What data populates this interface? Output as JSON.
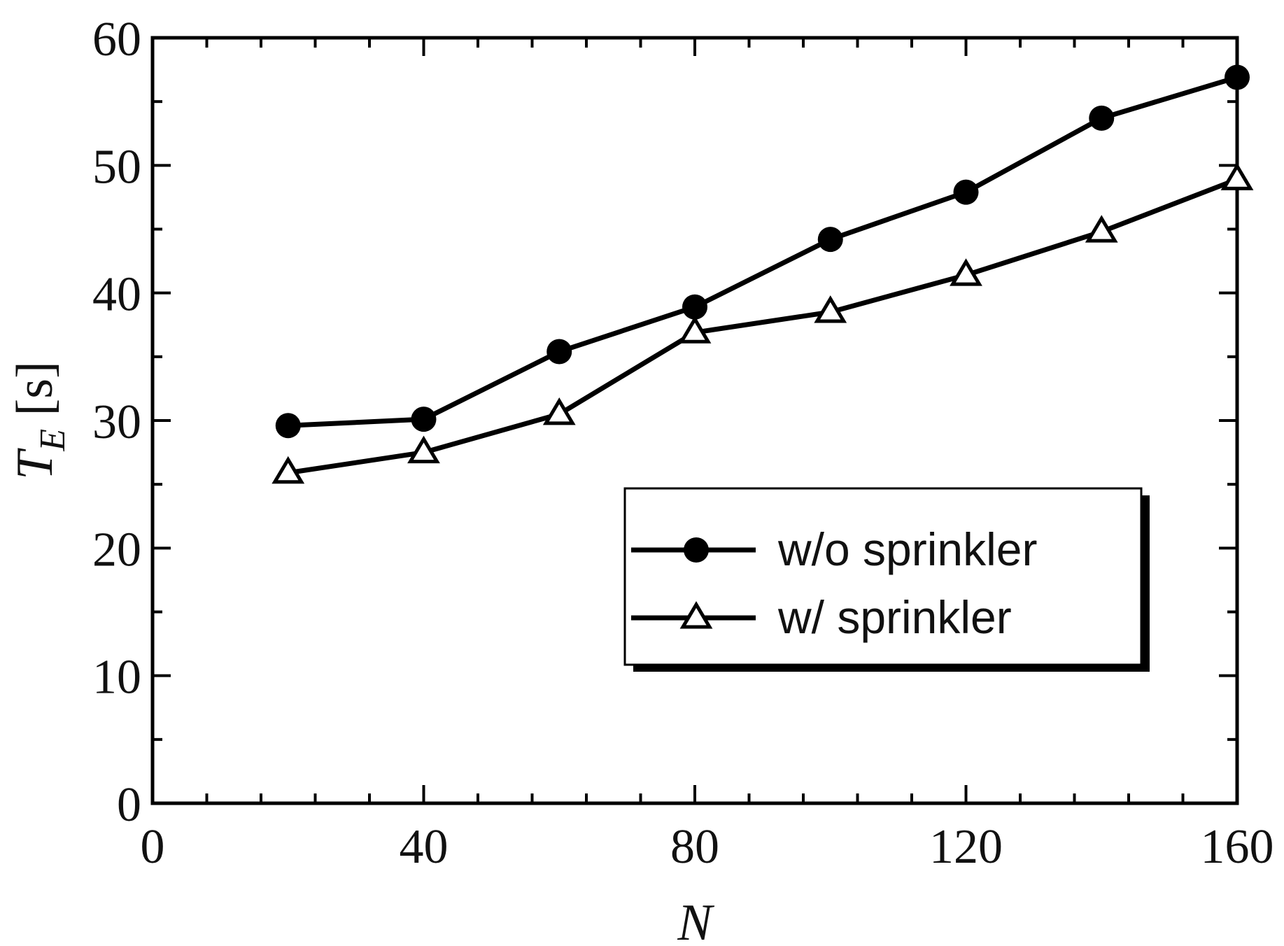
{
  "chart_data": {
    "type": "line",
    "title": "",
    "xlabel": "N",
    "ylabel": {
      "main": "T",
      "sub": "E",
      "unit": "[s]"
    },
    "xlim": [
      0,
      160
    ],
    "ylim": [
      0,
      60
    ],
    "x_major_ticks": [
      0,
      40,
      80,
      120,
      160
    ],
    "x_minor_step": 8,
    "y_major_ticks": [
      0,
      10,
      20,
      30,
      40,
      50,
      60
    ],
    "y_minor_step": 5,
    "grid": false,
    "legend_position": "lower-right",
    "series": [
      {
        "name": "w/o sprinkler",
        "marker": "filled-circle",
        "color": "#000000",
        "x": [
          20,
          40,
          60,
          80,
          100,
          120,
          140,
          160
        ],
        "y": [
          29.6,
          30.1,
          35.4,
          38.9,
          44.2,
          47.9,
          53.7,
          56.9
        ]
      },
      {
        "name": "w/ sprinkler",
        "marker": "open-triangle",
        "color": "#000000",
        "x": [
          20,
          40,
          60,
          80,
          100,
          120,
          140,
          160
        ],
        "y": [
          25.9,
          27.5,
          30.5,
          36.9,
          38.5,
          41.4,
          44.8,
          48.9
        ]
      }
    ]
  }
}
